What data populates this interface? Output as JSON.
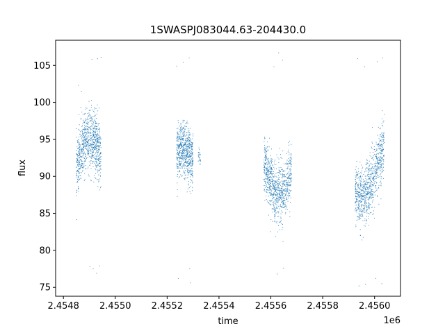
{
  "chart_data": {
    "type": "scatter",
    "title": "1SWASPJ083044.63-204430.0",
    "xlabel": "time",
    "ylabel": "flux",
    "x_offset_label": "1e6",
    "xlim": [
      2.45477,
      2.4561
    ],
    "ylim": [
      73.8,
      108.4
    ],
    "x_ticks": [
      2.4548,
      2.455,
      2.4552,
      2.4554,
      2.4556,
      2.4558,
      2.456
    ],
    "x_tick_labels": [
      "2.4548",
      "2.4550",
      "2.4552",
      "2.4554",
      "2.4556",
      "2.4558",
      "2.4560"
    ],
    "y_ticks": [
      75,
      80,
      85,
      90,
      95,
      100,
      105
    ],
    "y_tick_labels": [
      "75",
      "80",
      "85",
      "90",
      "95",
      "100",
      "105"
    ],
    "grid": false,
    "point_color": "#1f77b4",
    "segments": [
      {
        "x_range": [
          2.45485,
          2.454945
        ],
        "center": 91.0,
        "amplitude": 4.2,
        "spread": 2.0,
        "density": 900
      },
      {
        "x_range": [
          2.455237,
          2.4553
        ],
        "center": 91.0,
        "amplitude": 2.6,
        "spread": 1.8,
        "density": 700
      },
      {
        "x_range": [
          2.45532,
          2.45533
        ],
        "center": 92.5,
        "amplitude": 0.6,
        "spread": 0.6,
        "density": 25
      },
      {
        "x_range": [
          2.455573,
          2.45568
        ],
        "center": 91.5,
        "amplitude": 4.0,
        "spread": 2.0,
        "density": 900
      },
      {
        "x_range": [
          2.455925,
          2.456037
        ],
        "center": 91.0,
        "amplitude": 4.0,
        "spread": 2.0,
        "density": 900
      }
    ],
    "outliers": [
      {
        "x": 2.454858,
        "y": 102.3
      },
      {
        "x": 2.45487,
        "y": 101.5
      },
      {
        "x": 2.45491,
        "y": 105.8
      },
      {
        "x": 2.454932,
        "y": 105.9
      },
      {
        "x": 2.454945,
        "y": 106.1
      },
      {
        "x": 2.454915,
        "y": 77.5
      },
      {
        "x": 2.454928,
        "y": 76.9
      },
      {
        "x": 2.45494,
        "y": 77.9
      },
      {
        "x": 2.454902,
        "y": 77.8
      },
      {
        "x": 2.455237,
        "y": 104.9
      },
      {
        "x": 2.455262,
        "y": 105.4
      },
      {
        "x": 2.455285,
        "y": 106.0
      },
      {
        "x": 2.455243,
        "y": 76.2
      },
      {
        "x": 2.45529,
        "y": 75.6
      },
      {
        "x": 2.455287,
        "y": 77.5
      },
      {
        "x": 2.45563,
        "y": 106.7
      },
      {
        "x": 2.455645,
        "y": 105.7
      },
      {
        "x": 2.455612,
        "y": 104.8
      },
      {
        "x": 2.455625,
        "y": 76.8
      },
      {
        "x": 2.455648,
        "y": 77.6
      },
      {
        "x": 2.455935,
        "y": 105.9
      },
      {
        "x": 2.455962,
        "y": 104.8
      },
      {
        "x": 2.45603,
        "y": 106.0
      },
      {
        "x": 2.45601,
        "y": 105.5
      },
      {
        "x": 2.45594,
        "y": 75.2
      },
      {
        "x": 2.455965,
        "y": 75.4
      },
      {
        "x": 2.456005,
        "y": 76.2
      },
      {
        "x": 2.456028,
        "y": 75.5
      }
    ]
  }
}
